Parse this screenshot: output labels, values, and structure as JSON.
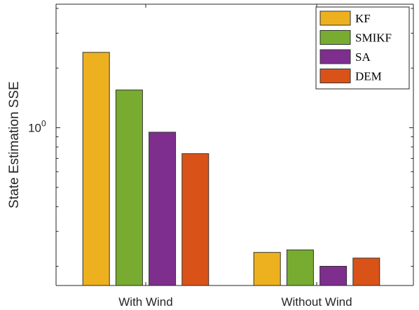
{
  "chart_data": {
    "type": "bar",
    "ylabel": "State Estimation SSE",
    "xlabel": "",
    "categories": [
      "With Wind",
      "Without Wind"
    ],
    "y_scale": "log",
    "ylim": [
      0.16,
      4.2
    ],
    "yticks": [
      {
        "value": 1,
        "base": "10",
        "exp": "0"
      }
    ],
    "grid": false,
    "legend_position": "top-right",
    "series": [
      {
        "name": "KF",
        "color": "#EDB120",
        "values": [
          2.4,
          0.235
        ]
      },
      {
        "name": "SMIKF",
        "color": "#77AC30",
        "values": [
          1.55,
          0.242
        ]
      },
      {
        "name": "SA",
        "color": "#7E2F8E",
        "values": [
          0.95,
          0.2
        ]
      },
      {
        "name": "DEM",
        "color": "#D95319",
        "values": [
          0.74,
          0.22
        ]
      }
    ]
  }
}
